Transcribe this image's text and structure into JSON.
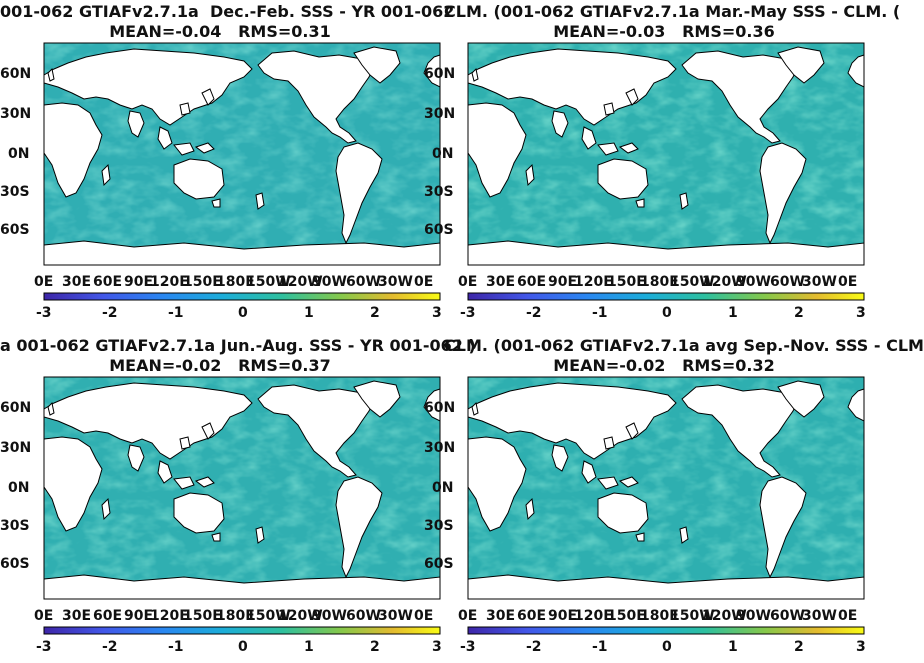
{
  "chart_data": [
    {
      "type": "heatmap",
      "title_line1": "001-062 GTIAFv2.7.1a  Dec.-Feb. SSS - YR 001-062",
      "title_line2": "MEAN=-0.04   RMS=0.31",
      "lat_ticks": [
        "60N",
        "30N",
        "0N",
        "30S",
        "60S"
      ],
      "lon_ticks": [
        "0E",
        "30E",
        "60E",
        "90E",
        "120E",
        "150E",
        "180E",
        "150W",
        "120W",
        "90W",
        "60W",
        "30W",
        "0E"
      ],
      "colorbar_ticks": [
        "-3",
        "-2",
        "-1",
        "0",
        "1",
        "2",
        "3"
      ],
      "clim": [
        -3,
        3
      ]
    },
    {
      "type": "heatmap",
      "title_line1": "CLM. (001-062 GTIAFv2.7.1a Mar.-May SSS - CLM. (",
      "title_line2": "MEAN=-0.03   RMS=0.36",
      "lat_ticks": [
        "60N",
        "30N",
        "0N",
        "30S",
        "60S"
      ],
      "lon_ticks": [
        "0E",
        "30E",
        "60E",
        "90E",
        "120E",
        "150E",
        "180E",
        "150W",
        "120W",
        "90W",
        "60W",
        "30W",
        "0E"
      ],
      "colorbar_ticks": [
        "-3",
        "-2",
        "-1",
        "0",
        "1",
        "2",
        "3"
      ],
      "clim": [
        -3,
        3
      ]
    },
    {
      "type": "heatmap",
      "title_line1": "a 001-062 GTIAFv2.7.1a Jun.-Aug. SSS - YR 001-062 )",
      "title_line2": "MEAN=-0.02   RMS=0.37",
      "lat_ticks": [
        "60N",
        "30N",
        "0N",
        "30S",
        "60S"
      ],
      "lon_ticks": [
        "0E",
        "30E",
        "60E",
        "90E",
        "120E",
        "150E",
        "180E",
        "150W",
        "120W",
        "90W",
        "60W",
        "30W",
        "0E"
      ],
      "colorbar_ticks": [
        "-3",
        "-2",
        "-1",
        "0",
        "1",
        "2",
        "3"
      ],
      "clim": [
        -3,
        3
      ]
    },
    {
      "type": "heatmap",
      "title_line1": "CLM. (001-062 GTIAFv2.7.1a avg Sep.-Nov. SSS - CLM",
      "title_line2": "MEAN=-0.02   RMS=0.32",
      "lat_ticks": [
        "60N",
        "30N",
        "0N",
        "30S",
        "60S"
      ],
      "lon_ticks": [
        "0E",
        "30E",
        "60E",
        "90E",
        "120E",
        "150E",
        "180E",
        "150W",
        "120W",
        "90W",
        "60W",
        "30W",
        "0E"
      ],
      "colorbar_ticks": [
        "-3",
        "-2",
        "-1",
        "0",
        "1",
        "2",
        "3"
      ],
      "clim": [
        -3,
        3
      ]
    }
  ],
  "colors": {
    "ocean_base": "#2db3a9",
    "ocean_light": "#5ac88e",
    "ocean_dark": "#3a9fd4",
    "land": "#ffffff",
    "coast": "#000000",
    "colormap": [
      "#3e26a8",
      "#4257e8",
      "#2a87f1",
      "#1cadd9",
      "#2ec09f",
      "#86c84b",
      "#e3bb30",
      "#f9fb15"
    ]
  }
}
